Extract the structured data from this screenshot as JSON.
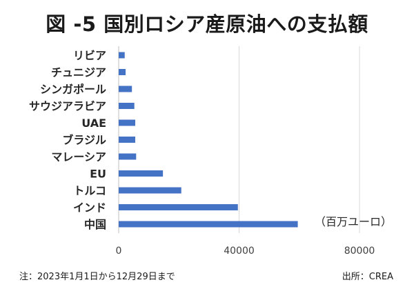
{
  "header": {
    "title": "図 -5 国別ロシア産原油への支払額"
  },
  "footer": {
    "note": "注：2023年1月1日から12月29日まで",
    "source": "出所：CREA"
  },
  "chart_data": {
    "type": "bar",
    "orientation": "horizontal",
    "title": "図 -5 国別ロシア産原油への支払額",
    "unit_label": "（百万ユーロ）",
    "categories": [
      "リビア",
      "チュニジア",
      "シンガポール",
      "サウジアラビア",
      "UAE",
      "ブラジル",
      "マレーシア",
      "EU",
      "トルコ",
      "インド",
      "中国"
    ],
    "values": [
      2000,
      2300,
      4400,
      5200,
      5500,
      5500,
      5800,
      14700,
      20800,
      39600,
      59500
    ],
    "xlim": [
      0,
      80000
    ],
    "x_ticks": [
      0,
      40000,
      80000
    ],
    "x_tick_labels": [
      "0",
      "40000",
      "80000"
    ],
    "grid": "vertical",
    "bar_color": "#4472c4",
    "grid_color": "#d9d9d9"
  }
}
